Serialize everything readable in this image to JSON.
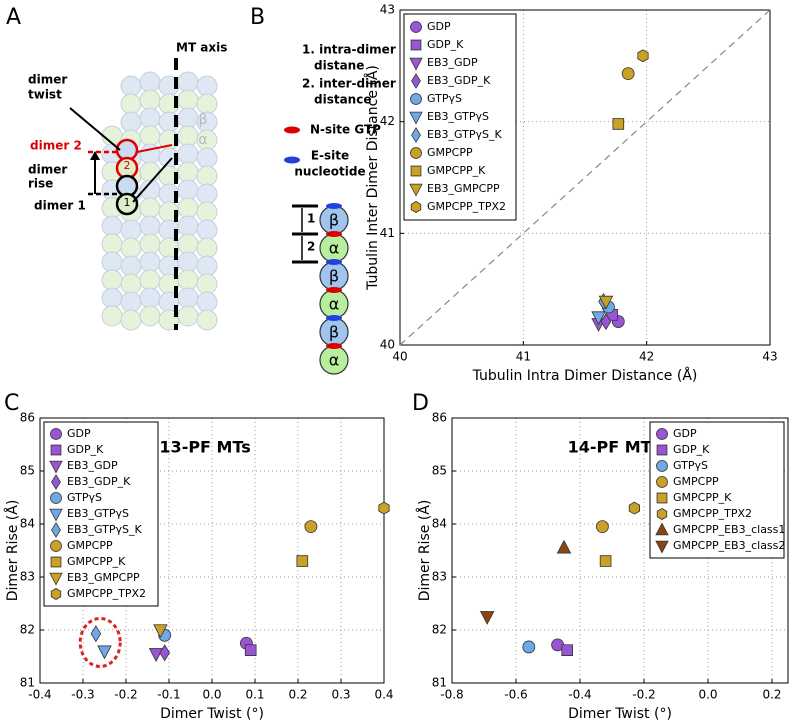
{
  "panel_labels": [
    "A",
    "B",
    "C",
    "D"
  ],
  "diagram_a": {
    "mt_axis": "MT axis",
    "dimer_twist": [
      "dimer",
      "twist"
    ],
    "dimer_2": "dimer 2",
    "dimer_rise": [
      "dimer",
      "rise"
    ],
    "dimer_1": "dimer 1",
    "beta": "β",
    "alpha": "α",
    "num_2": "2",
    "num_1": "1"
  },
  "diagram_b": {
    "item_1": [
      "1. intra-dimer",
      "distane"
    ],
    "item_2": [
      "2. inter-dimer",
      "distance"
    ],
    "n_site": "N-site GTP",
    "e_site": [
      "E-site",
      "nucleotide"
    ],
    "bracket_1": "1",
    "bracket_2": "2",
    "subunits": [
      "β",
      "α",
      "β",
      "α",
      "β",
      "α"
    ]
  },
  "chart_data": [
    {
      "type": "scatter",
      "xlabel": "Tubulin Intra Dimer Distance (Å)",
      "ylabel": "Tubulin Inter Dimer Distance (Å)",
      "xlim": [
        40,
        43
      ],
      "ylim": [
        40,
        43
      ],
      "xticks": [
        40,
        41,
        42,
        43
      ],
      "yticks": [
        40,
        41,
        42,
        43
      ],
      "grid": true,
      "diagonal": true,
      "legend": "upper left",
      "series": [
        {
          "name": "GDP",
          "color": "#9a55d6",
          "marker": "circle",
          "x": [
            41.77
          ],
          "values": [
            40.21
          ]
        },
        {
          "name": "GDP_K",
          "color": "#9a55d6",
          "marker": "square",
          "x": [
            41.72
          ],
          "values": [
            40.27
          ]
        },
        {
          "name": "EB3_GDP",
          "color": "#9a55d6",
          "marker": "triangle_down",
          "x": [
            41.61
          ],
          "values": [
            40.19
          ]
        },
        {
          "name": "EB3_GDP_K",
          "color": "#9a55d6",
          "marker": "diamond",
          "x": [
            41.67
          ],
          "values": [
            40.21
          ]
        },
        {
          "name": "GTPγS",
          "color": "#6fa8e6",
          "marker": "circle",
          "x": [
            41.69
          ],
          "values": [
            40.34
          ]
        },
        {
          "name": "EB3_GTPγS",
          "color": "#6fa8e6",
          "marker": "triangle_down",
          "x": [
            41.61
          ],
          "values": [
            40.25
          ]
        },
        {
          "name": "EB3_GTPγS_K",
          "color": "#6fa8e6",
          "marker": "diamond",
          "x": [
            41.65
          ],
          "values": [
            40.39
          ]
        },
        {
          "name": "GMPCPP",
          "color": "#c9a225",
          "marker": "circle",
          "x": [
            41.85
          ],
          "values": [
            42.43
          ]
        },
        {
          "name": "GMPCPP_K",
          "color": "#c9a225",
          "marker": "square",
          "x": [
            41.77
          ],
          "values": [
            41.98
          ]
        },
        {
          "name": "EB3_GMPCPP",
          "color": "#c9a225",
          "marker": "triangle_down",
          "x": [
            41.67
          ],
          "values": [
            40.39
          ]
        },
        {
          "name": "GMPCPP_TPX2",
          "color": "#c9a225",
          "marker": "hexagon",
          "x": [
            41.97
          ],
          "values": [
            42.59
          ]
        }
      ]
    },
    {
      "type": "scatter",
      "title": "13-PF MTs",
      "xlabel": "Dimer Twist (°)",
      "ylabel": "Dimer Rise (Å)",
      "xlim": [
        -0.4,
        0.4
      ],
      "ylim": [
        81,
        86
      ],
      "xticks": [
        -0.4,
        -0.3,
        -0.2,
        -0.1,
        {
          "value": 0,
          "label": "0.0"
        },
        0.1,
        0.2,
        0.3,
        0.4
      ],
      "yticks": [
        81,
        82,
        83,
        84,
        85,
        86
      ],
      "grid": true,
      "legend": "upper left",
      "series": [
        {
          "name": "GDP",
          "color": "#9a55d6",
          "marker": "circle",
          "x": [
            0.08
          ],
          "values": [
            81.75
          ]
        },
        {
          "name": "GDP_K",
          "color": "#9a55d6",
          "marker": "square",
          "x": [
            0.09
          ],
          "values": [
            81.62
          ]
        },
        {
          "name": "EB3_GDP",
          "color": "#9a55d6",
          "marker": "triangle_down",
          "x": [
            -0.13
          ],
          "values": [
            81.55
          ]
        },
        {
          "name": "EB3_GDP_K",
          "color": "#9a55d6",
          "marker": "diamond",
          "x": [
            -0.11
          ],
          "values": [
            81.57
          ]
        },
        {
          "name": "GTPγS",
          "color": "#6fa8e6",
          "marker": "circle",
          "x": [
            -0.11
          ],
          "values": [
            81.9
          ]
        },
        {
          "name": "EB3_GTPγS",
          "color": "#6fa8e6",
          "marker": "triangle_down",
          "x": [
            -0.25
          ],
          "values": [
            81.6
          ]
        },
        {
          "name": "EB3_GTPγS_K",
          "color": "#6fa8e6",
          "marker": "diamond",
          "x": [
            -0.27
          ],
          "values": [
            81.93
          ]
        },
        {
          "name": "GMPCPP",
          "color": "#c9a225",
          "marker": "circle",
          "x": [
            0.23
          ],
          "values": [
            83.95
          ]
        },
        {
          "name": "GMPCPP_K",
          "color": "#c9a225",
          "marker": "square",
          "x": [
            0.21
          ],
          "values": [
            83.3
          ]
        },
        {
          "name": "EB3_GMPCPP",
          "color": "#c9a225",
          "marker": "triangle_down",
          "x": [
            -0.12
          ],
          "values": [
            82.0
          ]
        },
        {
          "name": "GMPCPP_TPX2",
          "color": "#c9a225",
          "marker": "hexagon",
          "x": [
            0.4
          ],
          "values": [
            84.3
          ]
        }
      ]
    },
    {
      "type": "scatter",
      "title": "14-PF MTs",
      "xlabel": "Dimer Twist (°)",
      "ylabel": "Dimer Rise (Å)",
      "xlim": [
        -0.8,
        0.25
      ],
      "ylim": [
        81,
        86
      ],
      "xticks": [
        -0.8,
        -0.6,
        -0.4,
        -0.2,
        {
          "value": 0,
          "label": "0.0"
        },
        0.2
      ],
      "yticks": [
        81,
        82,
        83,
        84,
        85,
        86
      ],
      "grid": true,
      "legend": "upper right",
      "series": [
        {
          "name": "GDP",
          "color": "#9a55d6",
          "marker": "circle",
          "x": [
            -0.47
          ],
          "values": [
            81.72
          ]
        },
        {
          "name": "GDP_K",
          "color": "#9a55d6",
          "marker": "square",
          "x": [
            -0.44
          ],
          "values": [
            81.62
          ]
        },
        {
          "name": "GTPγS",
          "color": "#6fa8e6",
          "marker": "circle",
          "x": [
            -0.56
          ],
          "values": [
            81.68
          ]
        },
        {
          "name": "GMPCPP",
          "color": "#c9a225",
          "marker": "circle",
          "x": [
            -0.33
          ],
          "values": [
            83.95
          ]
        },
        {
          "name": "GMPCPP_K",
          "color": "#c9a225",
          "marker": "square",
          "x": [
            -0.32
          ],
          "values": [
            83.3
          ]
        },
        {
          "name": "GMPCPP_TPX2",
          "color": "#c9a225",
          "marker": "hexagon",
          "x": [
            -0.23
          ],
          "values": [
            84.3
          ]
        },
        {
          "name": "GMPCPP_EB3_class1",
          "color": "#8b4513",
          "marker": "triangle_up",
          "x": [
            -0.45
          ],
          "values": [
            83.55
          ]
        },
        {
          "name": "GMPCPP_EB3_class2",
          "color": "#8b4513",
          "marker": "triangle_down",
          "x": [
            -0.69
          ],
          "values": [
            82.25
          ]
        }
      ]
    }
  ]
}
